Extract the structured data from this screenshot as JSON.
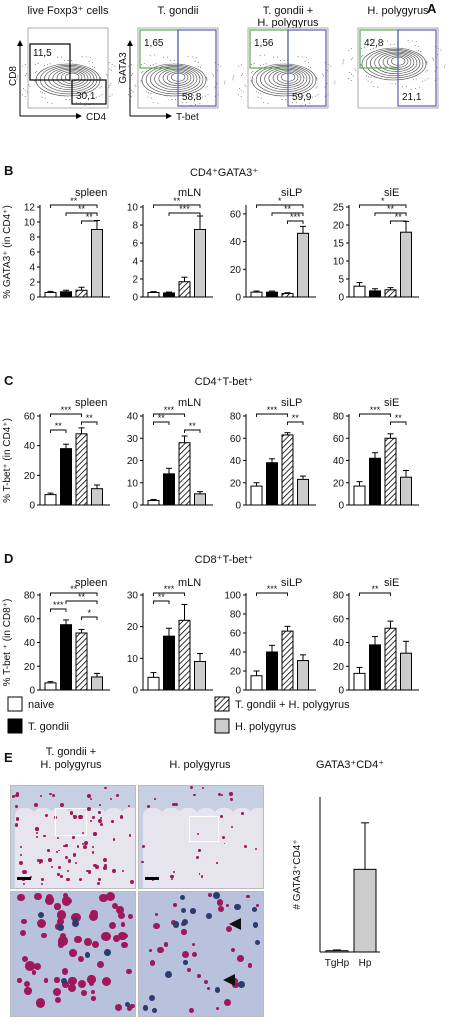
{
  "panels": {
    "A": {
      "label": "A",
      "plots": [
        {
          "title": "live Foxp3⁺ cells",
          "xaxis": "CD4",
          "yaxis": "CD8",
          "gates": [
            "11,5",
            "30,1"
          ]
        },
        {
          "title": "T. gondii",
          "xaxis": "T-bet",
          "yaxis": "GATA3",
          "gates": [
            "1,65",
            "58,8"
          ]
        },
        {
          "title": "T. gondii +\nH. polygyrus",
          "xaxis": "",
          "yaxis": "",
          "gates": [
            "1,56",
            "59,9"
          ]
        },
        {
          "title": "H. polygyrus",
          "xaxis": "",
          "yaxis": "",
          "gates": [
            "42,8",
            "21,1"
          ]
        }
      ]
    },
    "B": {
      "label": "B",
      "title": "CD4⁺GATA3⁺",
      "ylabel": "% GATA3⁺ (in CD4⁺)"
    },
    "C": {
      "label": "C",
      "title": "CD4⁺T-bet⁺",
      "ylabel": "% T-bet⁺ (in CD4⁺)"
    },
    "D": {
      "label": "D",
      "title": "CD8⁺T-bet⁺",
      "ylabel": "% T-bet ⁺ (in CD8⁺)"
    },
    "E": {
      "label": "E",
      "images": [
        {
          "title": "T. gondii +\nH. polygyrus"
        },
        {
          "title": "H. polygyrus"
        }
      ],
      "title": "GATA3⁺CD4⁺",
      "ylabel": "# GATA3⁺CD4⁺"
    }
  },
  "legend": [
    {
      "label": "naive",
      "fill": "#ffffff"
    },
    {
      "label": "T. gondii",
      "fill": "#000000"
    },
    {
      "label": "T. gondii + H. polygyrus",
      "fill": "hatch"
    },
    {
      "label": "H. polygyrus",
      "fill": "#cccccc"
    }
  ],
  "colors": {
    "naive": "#ffffff",
    "tgondii": "#000000",
    "hpolygyrus": "#cccccc",
    "gate_green": "#5aa85a",
    "gate_blue": "#5a5ab0"
  },
  "chart_data": [
    {
      "type": "bar",
      "panel": "B",
      "tissue": "spleen",
      "categories": [
        "naive",
        "T. gondii",
        "T. gondii + H. polygyrus",
        "H. polygyrus"
      ],
      "values": [
        0.6,
        0.7,
        0.9,
        9.0
      ],
      "errors": [
        0.15,
        0.2,
        0.4,
        1.2
      ],
      "ylim": [
        0,
        12
      ],
      "yticks": [
        0,
        2,
        4,
        6,
        8,
        10,
        12
      ],
      "sig": [
        {
          "a": 0,
          "b": 3,
          "label": "**"
        },
        {
          "a": 1,
          "b": 3,
          "label": "**"
        },
        {
          "a": 2,
          "b": 3,
          "label": "**"
        }
      ]
    },
    {
      "type": "bar",
      "panel": "B",
      "tissue": "mLN",
      "categories": [
        "naive",
        "T. gondii",
        "T. gondii + H. polygyrus",
        "H. polygyrus"
      ],
      "values": [
        0.5,
        0.45,
        1.7,
        7.5
      ],
      "errors": [
        0.1,
        0.1,
        0.5,
        1.5
      ],
      "ylim": [
        0,
        10
      ],
      "yticks": [
        0,
        2,
        4,
        6,
        8,
        10
      ],
      "sig": [
        {
          "a": 0,
          "b": 3,
          "label": "**"
        },
        {
          "a": 1,
          "b": 3,
          "label": "***"
        }
      ]
    },
    {
      "type": "bar",
      "panel": "B",
      "tissue": "siLP",
      "categories": [
        "naive",
        "T. gondii",
        "T. gondii + H. polygyrus",
        "H. polygyrus"
      ],
      "values": [
        3.5,
        3.5,
        2.5,
        46
      ],
      "errors": [
        0.8,
        0.8,
        0.6,
        5
      ],
      "ylim": [
        0,
        65
      ],
      "yticks": [
        0,
        20,
        40,
        60
      ],
      "sig": [
        {
          "a": 0,
          "b": 3,
          "label": "*"
        },
        {
          "a": 1,
          "b": 3,
          "label": "**"
        },
        {
          "a": 2,
          "b": 3,
          "label": "***"
        }
      ]
    },
    {
      "type": "bar",
      "panel": "B",
      "tissue": "siE",
      "categories": [
        "naive",
        "T. gondii",
        "T. gondii + H. polygyrus",
        "H. polygyrus"
      ],
      "values": [
        3.0,
        1.7,
        2.0,
        18
      ],
      "errors": [
        1.0,
        0.6,
        0.6,
        3
      ],
      "ylim": [
        0,
        25
      ],
      "yticks": [
        0,
        5,
        10,
        15,
        20,
        25
      ],
      "sig": [
        {
          "a": 0,
          "b": 3,
          "label": "*"
        },
        {
          "a": 1,
          "b": 3,
          "label": "**"
        },
        {
          "a": 2,
          "b": 3,
          "label": "**"
        }
      ]
    },
    {
      "type": "bar",
      "panel": "C",
      "tissue": "spleen",
      "categories": [
        "naive",
        "T. gondii",
        "T. gondii + H. polygyrus",
        "H. polygyrus"
      ],
      "values": [
        7,
        38,
        48,
        11
      ],
      "errors": [
        1,
        3,
        4,
        2.5
      ],
      "ylim": [
        0,
        60
      ],
      "yticks": [
        0,
        20,
        40,
        60
      ],
      "sig": [
        {
          "a": 0,
          "b": 2,
          "label": "***"
        },
        {
          "a": 2,
          "b": 3,
          "label": "**"
        },
        {
          "a": 0,
          "b": 1,
          "label": "**"
        }
      ]
    },
    {
      "type": "bar",
      "panel": "C",
      "tissue": "mLN",
      "categories": [
        "naive",
        "T. gondii",
        "T. gondii + H. polygyrus",
        "H. polygyrus"
      ],
      "values": [
        2,
        14,
        28,
        5
      ],
      "errors": [
        0.5,
        2.5,
        3,
        1
      ],
      "ylim": [
        0,
        40
      ],
      "yticks": [
        0,
        10,
        20,
        30,
        40
      ],
      "sig": [
        {
          "a": 0,
          "b": 2,
          "label": "***"
        },
        {
          "a": 0,
          "b": 1,
          "label": "**"
        },
        {
          "a": 2,
          "b": 3,
          "label": "**"
        }
      ]
    },
    {
      "type": "bar",
      "panel": "C",
      "tissue": "siLP",
      "categories": [
        "naive",
        "T. gondii",
        "T. gondii + H. polygyrus",
        "H. polygyrus"
      ],
      "values": [
        17,
        38,
        63,
        23
      ],
      "errors": [
        3,
        3.5,
        2,
        3
      ],
      "ylim": [
        0,
        80
      ],
      "yticks": [
        0,
        20,
        40,
        60,
        80
      ],
      "sig": [
        {
          "a": 0,
          "b": 2,
          "label": "***"
        },
        {
          "a": 2,
          "b": 3,
          "label": "**"
        }
      ]
    },
    {
      "type": "bar",
      "panel": "C",
      "tissue": "siE",
      "categories": [
        "naive",
        "T. gondii",
        "T. gondii + H. polygyrus",
        "H. polygyrus"
      ],
      "values": [
        17,
        42,
        60,
        25
      ],
      "errors": [
        4,
        5,
        4,
        6
      ],
      "ylim": [
        0,
        80
      ],
      "yticks": [
        0,
        20,
        40,
        60,
        80
      ],
      "sig": [
        {
          "a": 0,
          "b": 2,
          "label": "***"
        },
        {
          "a": 2,
          "b": 3,
          "label": "**"
        }
      ]
    },
    {
      "type": "bar",
      "panel": "D",
      "tissue": "spleen",
      "categories": [
        "naive",
        "T. gondii",
        "T. gondii + H. polygyrus",
        "H. polygyrus"
      ],
      "values": [
        6,
        55,
        48,
        11
      ],
      "errors": [
        1,
        4,
        3,
        3
      ],
      "ylim": [
        0,
        80
      ],
      "yticks": [
        0,
        20,
        40,
        60,
        80
      ],
      "sig": [
        {
          "a": 0,
          "b": 3,
          "label": "**"
        },
        {
          "a": 1,
          "b": 3,
          "label": "**"
        },
        {
          "a": 0,
          "b": 1,
          "label": "***"
        },
        {
          "a": 2,
          "b": 3,
          "label": "*"
        }
      ]
    },
    {
      "type": "bar",
      "panel": "D",
      "tissue": "mLN",
      "categories": [
        "naive",
        "T. gondii",
        "T. gondii + H. polygyrus",
        "H. polygyrus"
      ],
      "values": [
        4,
        17,
        22,
        9
      ],
      "errors": [
        1.5,
        2.5,
        5,
        2.5
      ],
      "ylim": [
        0,
        30
      ],
      "yticks": [
        0,
        10,
        20,
        30
      ],
      "sig": [
        {
          "a": 0,
          "b": 2,
          "label": "***"
        },
        {
          "a": 0,
          "b": 1,
          "label": "**"
        }
      ]
    },
    {
      "type": "bar",
      "panel": "D",
      "tissue": "siLP",
      "categories": [
        "naive",
        "T. gondii",
        "T. gondii + H. polygyrus",
        "H. polygyrus"
      ],
      "values": [
        15,
        40,
        62,
        31
      ],
      "errors": [
        5,
        7,
        5,
        6
      ],
      "ylim": [
        0,
        100
      ],
      "yticks": [
        0,
        20,
        40,
        60,
        80,
        100
      ],
      "sig": [
        {
          "a": 0,
          "b": 2,
          "label": "***"
        }
      ]
    },
    {
      "type": "bar",
      "panel": "D",
      "tissue": "siE",
      "categories": [
        "naive",
        "T. gondii",
        "T. gondii + H. polygyrus",
        "H. polygyrus"
      ],
      "values": [
        14,
        38,
        52,
        31
      ],
      "errors": [
        5,
        7,
        6,
        10
      ],
      "ylim": [
        0,
        80
      ],
      "yticks": [
        0,
        20,
        40,
        60,
        80
      ],
      "sig": [
        {
          "a": 0,
          "b": 2,
          "label": "**"
        }
      ]
    },
    {
      "type": "bar",
      "panel": "E",
      "tissue": "GATA3⁺CD4⁺",
      "categories": [
        "TgHp",
        "Hp"
      ],
      "values": [
        0.5,
        32
      ],
      "errors": [
        0.3,
        18
      ],
      "ylim": [
        0,
        60
      ],
      "yticks": [
        0,
        20,
        40,
        60
      ],
      "sig": []
    }
  ]
}
